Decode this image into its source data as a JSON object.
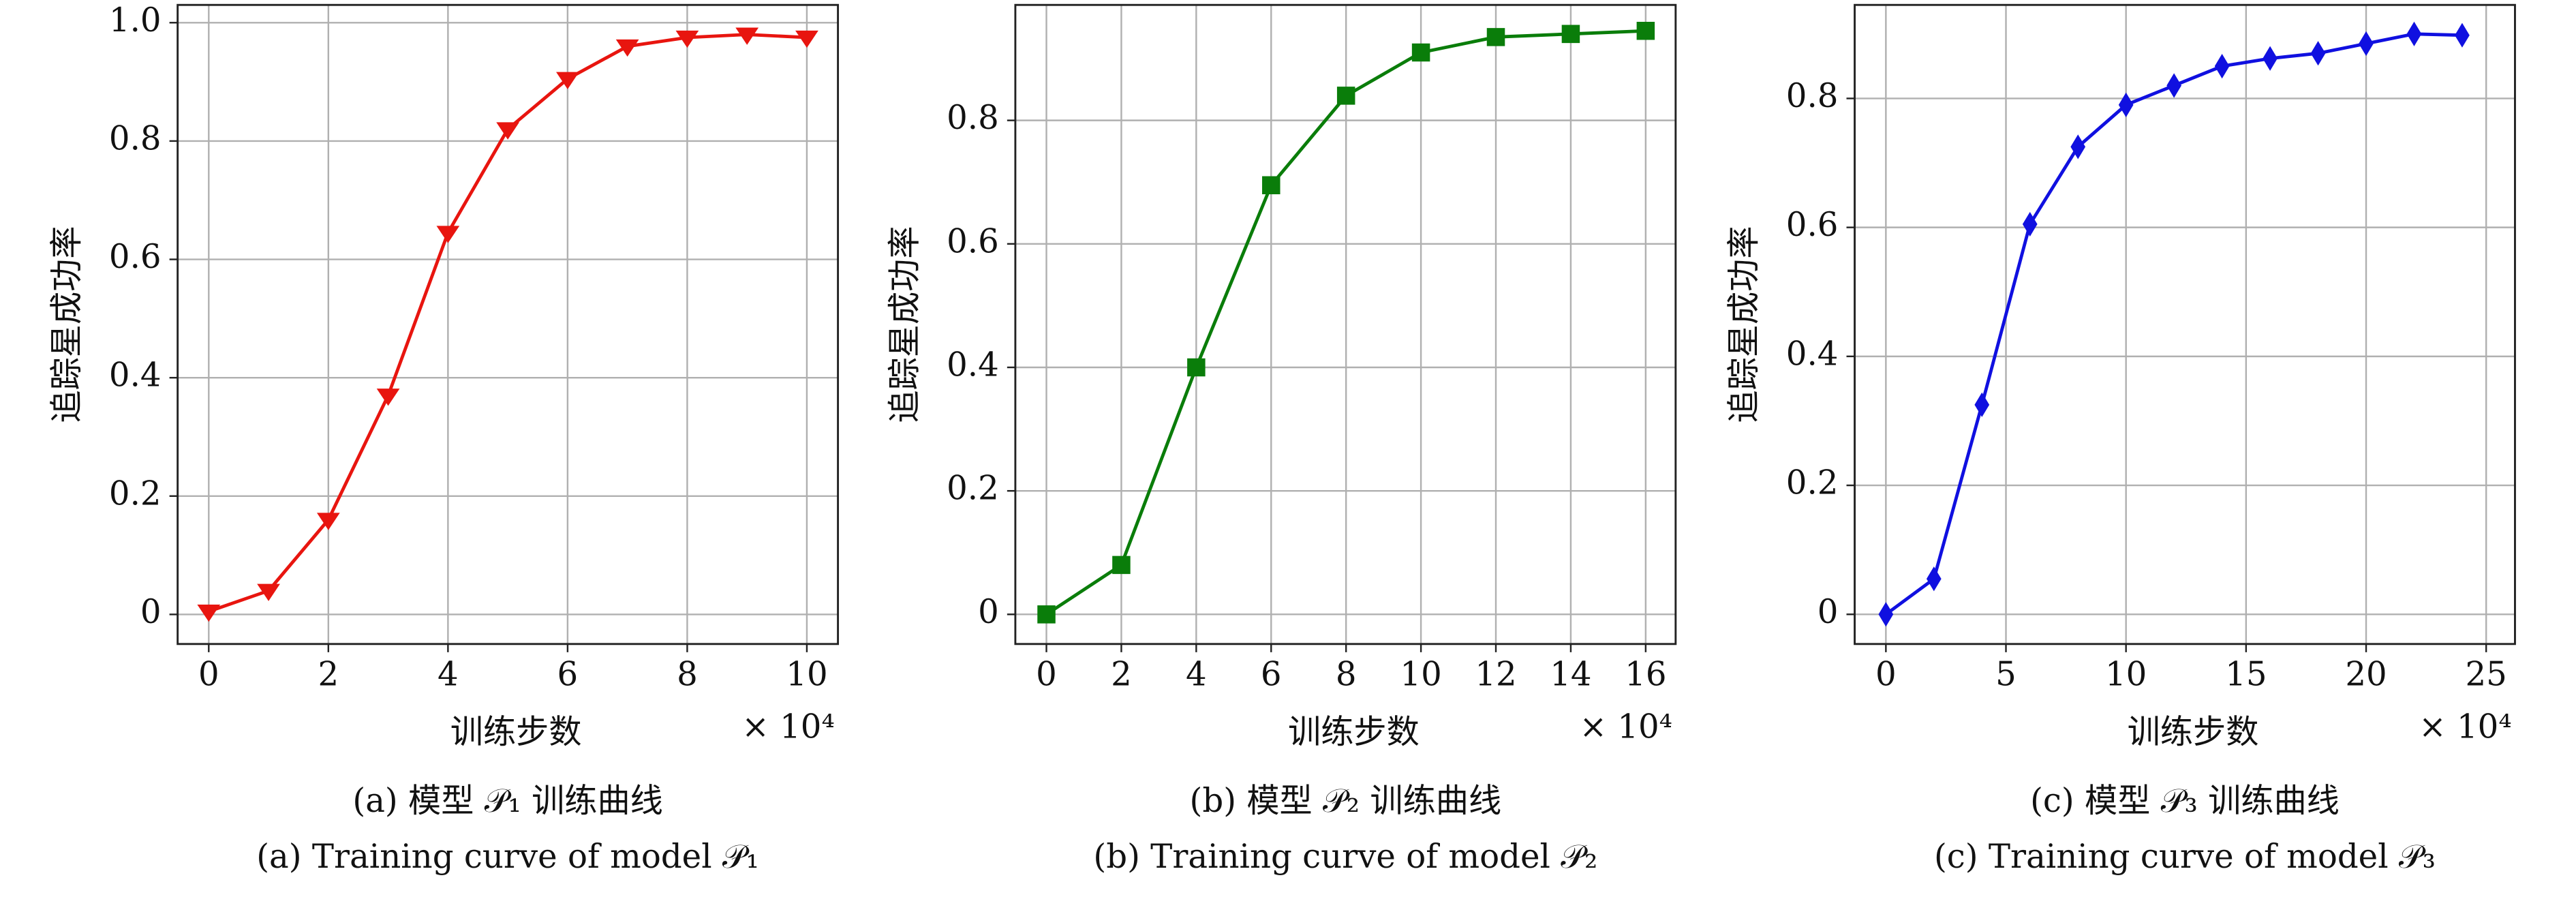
{
  "chart_data": [
    {
      "type": "line",
      "x": [
        0,
        1,
        2,
        3,
        4,
        5,
        6,
        7,
        8,
        9,
        10
      ],
      "values": [
        0.005,
        0.04,
        0.16,
        0.37,
        0.645,
        0.82,
        0.905,
        0.96,
        0.975,
        0.98,
        0.975
      ],
      "color": "#e8150f",
      "marker": "triangle-down",
      "xlim": [
        -0.52,
        10.52
      ],
      "ylim": [
        -0.05,
        1.03
      ],
      "xticks": [
        0,
        2,
        4,
        6,
        8,
        10
      ],
      "yticks": [
        0,
        0.2,
        0.4,
        0.6,
        0.8,
        {
          "value": 1,
          "label": "1.0"
        }
      ],
      "xlabel": "训练步数",
      "ylabel": "追踪星成功率",
      "x_multiplier": "× 10⁴",
      "grid": true,
      "caption_zh": "(a) 模型 𝒫₁ 训练曲线",
      "caption_en": "(a) Training curve of model 𝒫₁"
    },
    {
      "type": "line",
      "x": [
        0,
        2,
        4,
        6,
        8,
        10,
        12,
        14,
        16
      ],
      "values": [
        0,
        0.08,
        0.4,
        0.695,
        0.84,
        0.91,
        0.935,
        0.94,
        0.945
      ],
      "color": "#0a7d0a",
      "marker": "square",
      "xlim": [
        -0.83,
        16.8
      ],
      "ylim": [
        -0.048,
        0.987
      ],
      "xticks": [
        0,
        2,
        4,
        6,
        8,
        10,
        12,
        14,
        16
      ],
      "yticks": [
        0,
        0.2,
        0.4,
        0.6,
        0.8
      ],
      "xlabel": "训练步数",
      "ylabel": "追踪星成功率",
      "x_multiplier": "× 10⁴",
      "grid": true,
      "caption_zh": "(b) 模型 𝒫₂ 训练曲线",
      "caption_en": "(b) Training curve of model 𝒫₂"
    },
    {
      "type": "line",
      "x": [
        0,
        2,
        4,
        6,
        8,
        10,
        12,
        14,
        16,
        18,
        20,
        22,
        24
      ],
      "values": [
        0,
        0.055,
        0.325,
        0.605,
        0.725,
        0.79,
        0.82,
        0.85,
        0.862,
        0.87,
        0.885,
        0.9,
        0.898
      ],
      "color": "#1010e0",
      "marker": "diamond",
      "xlim": [
        -1.3,
        26.2
      ],
      "ylim": [
        -0.046,
        0.945
      ],
      "xticks": [
        0,
        5,
        10,
        15,
        20,
        25
      ],
      "yticks": [
        0,
        0.2,
        0.4,
        0.6,
        0.8
      ],
      "xlabel": "训练步数",
      "ylabel": "追踪星成功率",
      "x_multiplier": "× 10⁴",
      "grid": true,
      "caption_zh": "(c) 模型 𝒫₃ 训练曲线",
      "caption_en": "(c) Training curve of model 𝒫₃"
    }
  ]
}
